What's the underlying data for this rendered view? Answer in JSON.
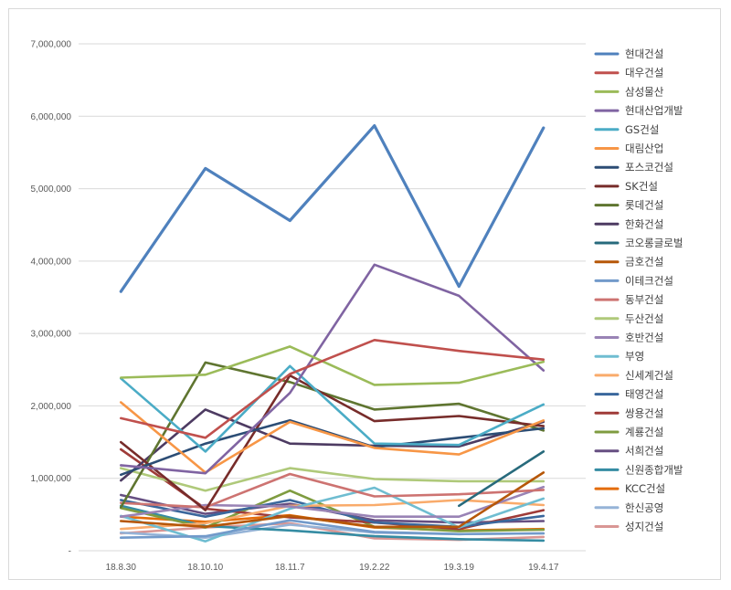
{
  "chart_data": {
    "type": "line",
    "title": "",
    "xlabel": "",
    "ylabel": "",
    "categories": [
      "18.8.30",
      "18.10.10",
      "18.11.7",
      "19.2.22",
      "19.3.19",
      "19.4.17"
    ],
    "y_ticks": [
      "-",
      "1,000,000",
      "2,000,000",
      "3,000,000",
      "4,000,000",
      "5,000,000",
      "6,000,000",
      "7,000,000"
    ],
    "ylim": [
      0,
      7000000
    ],
    "grid": true,
    "legend_position": "right",
    "series": [
      {
        "name": "현대건설",
        "color": "#4f81bd",
        "values": [
          3580000,
          5280000,
          4560000,
          5870000,
          3650000,
          5840000
        ]
      },
      {
        "name": "대우건설",
        "color": "#c0504d",
        "values": [
          1830000,
          1560000,
          2440000,
          2910000,
          2760000,
          2640000
        ]
      },
      {
        "name": "삼성물산",
        "color": "#9bbb59",
        "values": [
          2390000,
          2430000,
          2820000,
          2290000,
          2320000,
          2610000
        ]
      },
      {
        "name": "현대산업개발",
        "color": "#8064a2",
        "values": [
          1180000,
          1070000,
          2180000,
          3950000,
          3520000,
          2490000
        ]
      },
      {
        "name": "GS건설",
        "color": "#4bacc6",
        "values": [
          2380000,
          1370000,
          2550000,
          1480000,
          1460000,
          2020000
        ]
      },
      {
        "name": "대림산업",
        "color": "#f79646",
        "values": [
          2050000,
          1080000,
          1780000,
          1420000,
          1330000,
          1800000
        ]
      },
      {
        "name": "포스코건설",
        "color": "#2c4d75",
        "values": [
          1050000,
          1480000,
          1800000,
          1430000,
          1560000,
          1690000
        ]
      },
      {
        "name": "SK건설",
        "color": "#772c2a",
        "values": [
          1500000,
          560000,
          2420000,
          1790000,
          1860000,
          1720000
        ]
      },
      {
        "name": "롯데건설",
        "color": "#5f7530",
        "values": [
          600000,
          2600000,
          2330000,
          1950000,
          2030000,
          1660000
        ]
      },
      {
        "name": "한화건설",
        "color": "#4d3b62",
        "values": [
          970000,
          1950000,
          1480000,
          1450000,
          1440000,
          1780000
        ]
      },
      {
        "name": "코오롱글로벌",
        "color": "#276a7c",
        "values": [
          null,
          null,
          null,
          null,
          620000,
          1370000
        ]
      },
      {
        "name": "금호건설",
        "color": "#b65708",
        "values": [
          410000,
          330000,
          480000,
          330000,
          330000,
          1080000
        ]
      },
      {
        "name": "이테크건설",
        "color": "#729aca",
        "values": [
          180000,
          200000,
          420000,
          260000,
          230000,
          240000
        ]
      },
      {
        "name": "동부건설",
        "color": "#cd7371",
        "values": [
          660000,
          600000,
          1060000,
          750000,
          780000,
          840000
        ]
      },
      {
        "name": "두산건설",
        "color": "#afc97a",
        "values": [
          1140000,
          830000,
          1140000,
          990000,
          960000,
          960000
        ]
      },
      {
        "name": "호반건설",
        "color": "#9983b5",
        "values": [
          470000,
          630000,
          610000,
          470000,
          470000,
          880000
        ]
      },
      {
        "name": "부영",
        "color": "#6fbdd1",
        "values": [
          480000,
          130000,
          580000,
          870000,
          320000,
          720000
        ]
      },
      {
        "name": "신세계건설",
        "color": "#f9ab6b",
        "values": [
          300000,
          380000,
          620000,
          630000,
          700000,
          630000
        ]
      },
      {
        "name": "태영건설",
        "color": "#3a679c",
        "values": [
          700000,
          470000,
          700000,
          390000,
          330000,
          480000
        ]
      },
      {
        "name": "쌍용건설",
        "color": "#9f3b38",
        "values": [
          1400000,
          580000,
          460000,
          390000,
          300000,
          560000
        ]
      },
      {
        "name": "계룡건설",
        "color": "#7f9c40",
        "values": [
          590000,
          320000,
          830000,
          330000,
          270000,
          290000
        ]
      },
      {
        "name": "서희건설",
        "color": "#664f82",
        "values": [
          770000,
          510000,
          650000,
          420000,
          390000,
          410000
        ]
      },
      {
        "name": "신원종합개발",
        "color": "#358ca3",
        "values": [
          620000,
          340000,
          280000,
          200000,
          160000,
          140000
        ]
      },
      {
        "name": "KCC건설",
        "color": "#e46c0a",
        "values": [
          470000,
          400000,
          490000,
          320000,
          280000,
          300000
        ]
      },
      {
        "name": "한신공영",
        "color": "#95b3d7",
        "values": [
          250000,
          180000,
          360000,
          250000,
          230000,
          240000
        ]
      },
      {
        "name": "성지건설",
        "color": "#d99694",
        "values": [
          240000,
          320000,
          380000,
          170000,
          150000,
          190000
        ]
      }
    ]
  }
}
